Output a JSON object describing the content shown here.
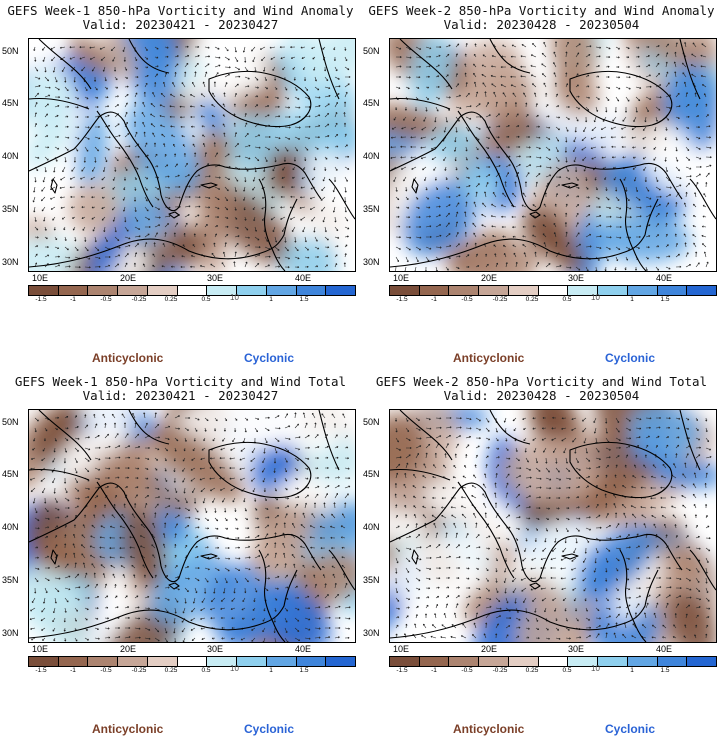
{
  "panels": [
    {
      "title": "GEFS Week-1 850-hPa Vorticity and Wind Anomaly",
      "valid": "Valid: 20230421 - 20230427"
    },
    {
      "title": "GEFS Week-2 850-hPa Vorticity and Wind Anomaly",
      "valid": "Valid: 20230428 - 20230504"
    },
    {
      "title": "GEFS Week-1 850-hPa Vorticity and Wind Total",
      "valid": "Valid: 20230421 - 20230427"
    },
    {
      "title": "GEFS Week-2 850-hPa Vorticity and Wind Total",
      "valid": "Valid: 20230428 - 20230504"
    }
  ],
  "lat_labels": [
    "50N",
    "45N",
    "40N",
    "35N",
    "30N"
  ],
  "lon_labels": [
    "10E",
    "20E",
    "30E",
    "40E"
  ],
  "colorbar": {
    "ticks": [
      "-1.5",
      "-1",
      "-0.5",
      "-0.25",
      "0.25",
      "0.5",
      "1",
      "1.5"
    ],
    "unit_marker": "10",
    "colors": [
      "#7a4e3a",
      "#94664f",
      "#ac8470",
      "#c6a697",
      "#e4cec4",
      "#ffffff",
      "#c8ecf4",
      "#8fd0ee",
      "#62a6e4",
      "#3f85db",
      "#2466d2"
    ]
  },
  "legend": {
    "anticyclonic": "Anticyclonic",
    "cyclonic": "Cyclonic",
    "anticyclonic_color": "#7b3f28",
    "cyclonic_color": "#2a63d6"
  }
}
